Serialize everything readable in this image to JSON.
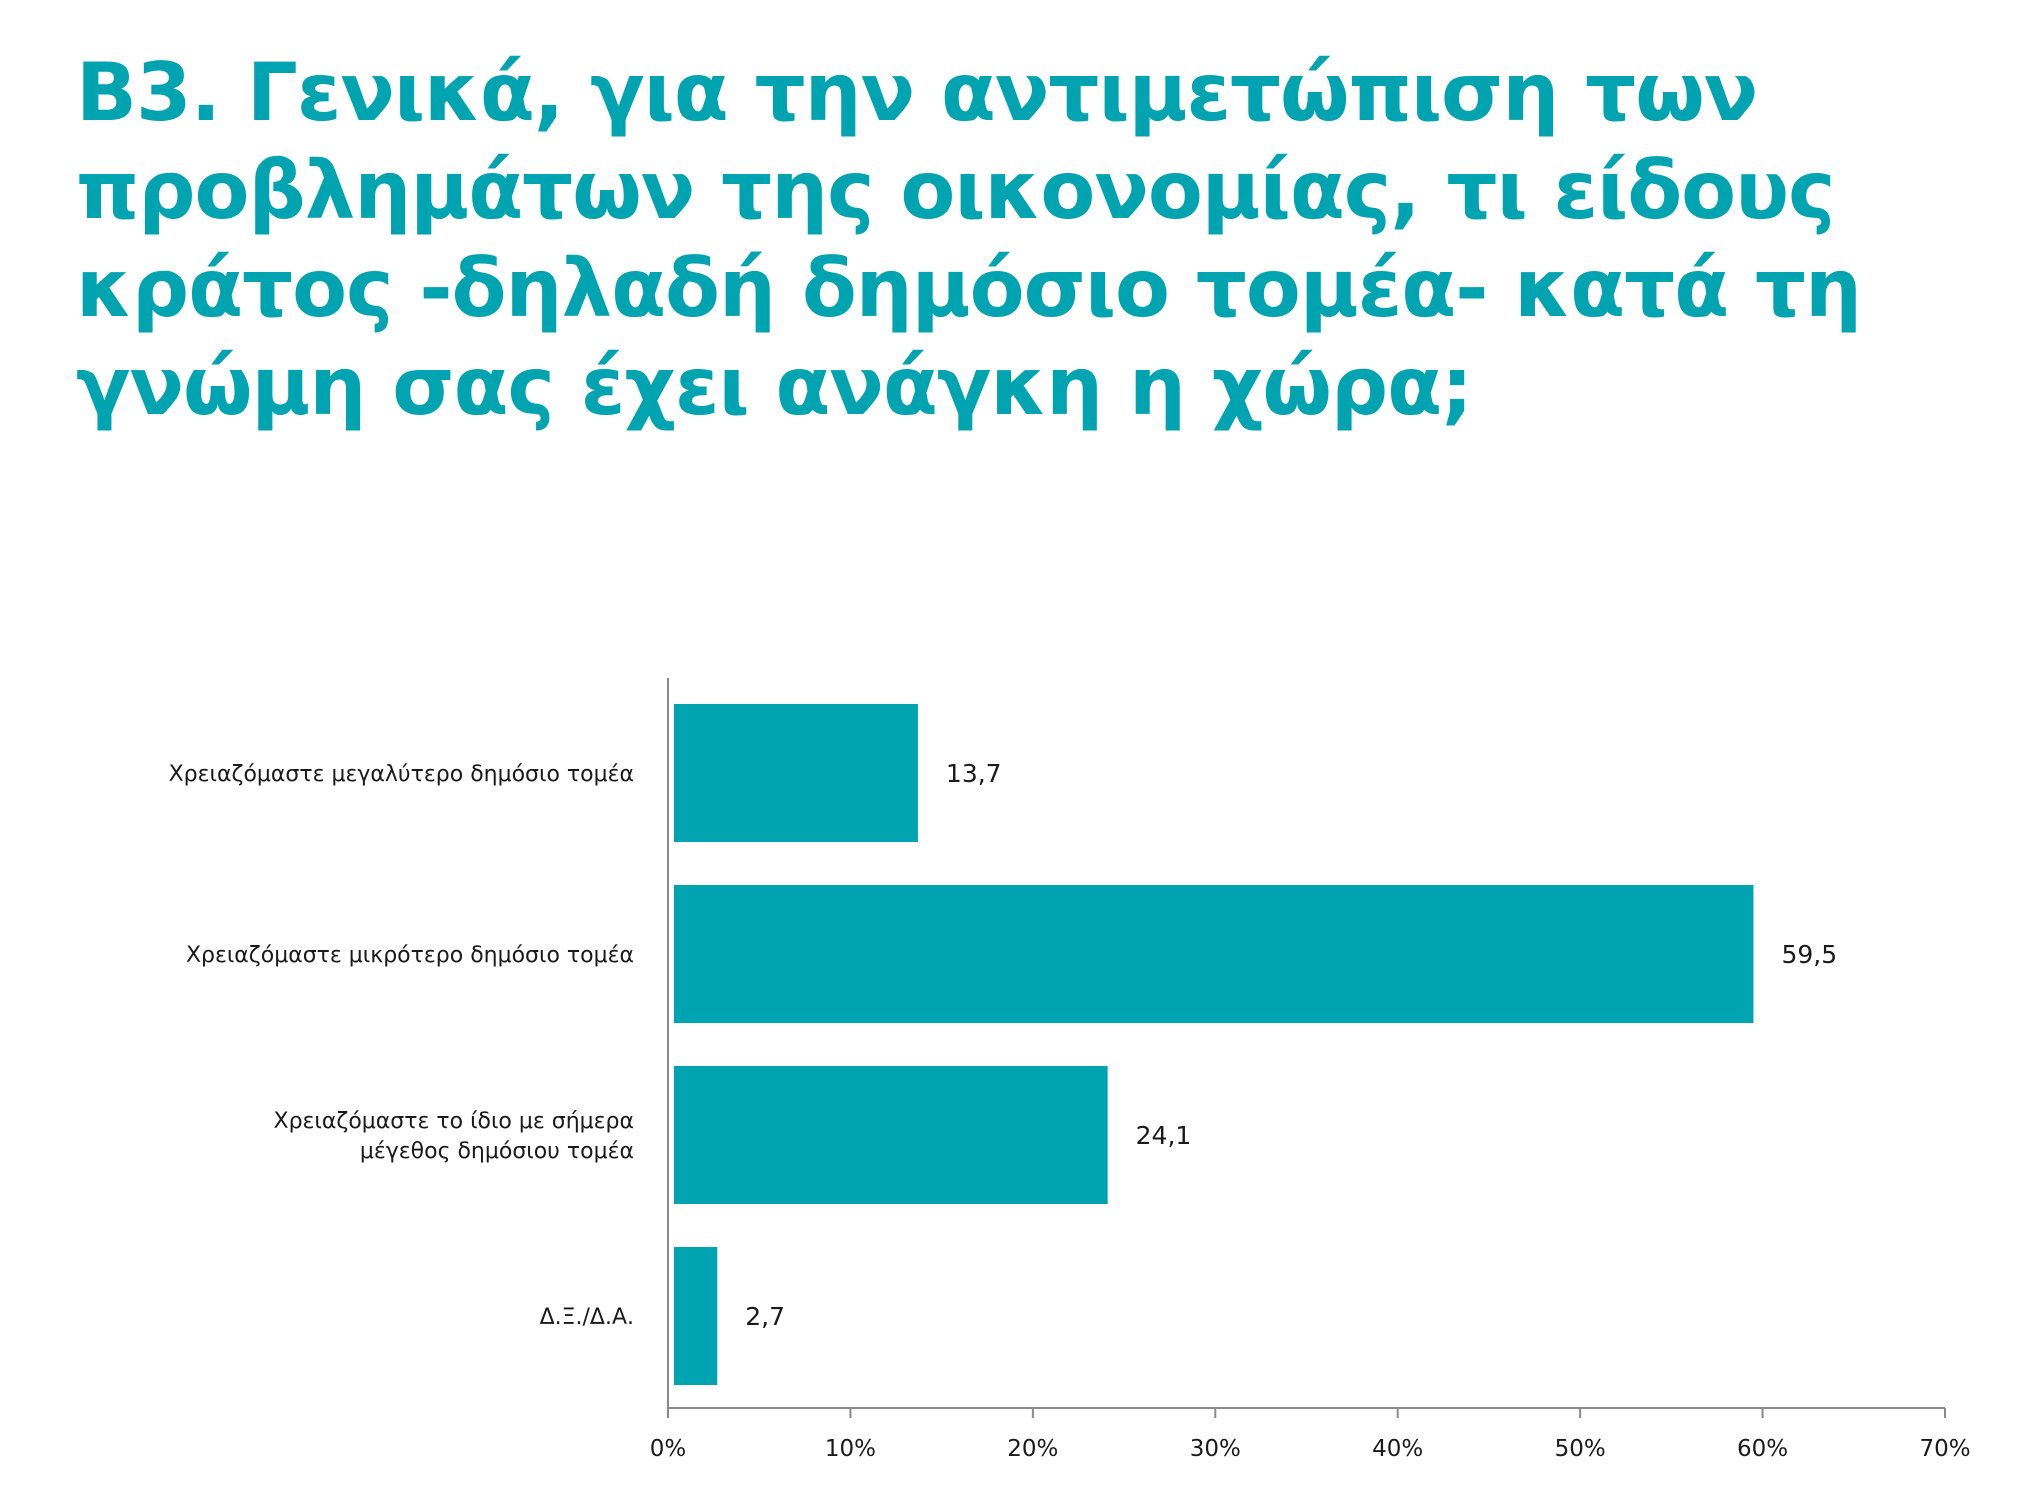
{
  "title_lines": [
    "Β3. Γενικά, για την αντιμετώπιση των",
    "προβλημάτων της οικονομίας, τι είδους",
    "κράτος -δηλαδή δημόσιο τομέα- κατά τη",
    "γνώμη σας έχει ανάγκη η χώρα;"
  ],
  "colors": {
    "accent": "#00A3B0",
    "bar": "#00A3B0",
    "axis": "#8a8a8a",
    "text": "#1a1a1a"
  },
  "chart_data": {
    "type": "bar",
    "orientation": "horizontal",
    "title": "Β3. Γενικά, για την αντιμετώπιση των προβλημάτων της οικονομίας, τι είδους κράτος -δηλαδή δημόσιο τομέα- κατά τη γνώμη σας έχει ανάγκη η χώρα;",
    "categories": [
      [
        "Χρειαζόμαστε μεγαλύτερο δημόσιο τομέα"
      ],
      [
        "Χρειαζόμαστε μικρότερο δημόσιο τομέα"
      ],
      [
        "Χρειαζόμαστε το ίδιο με σήμερα",
        "μέγεθος δημόσιου τομέα"
      ],
      [
        "Δ.Ξ./Δ.Α."
      ]
    ],
    "values": [
      13.7,
      59.5,
      24.1,
      2.7
    ],
    "value_labels": [
      "13,7",
      "59,5",
      "24,1",
      "2,7"
    ],
    "xlim": [
      0,
      70
    ],
    "xticks": [
      0,
      10,
      20,
      30,
      40,
      50,
      60,
      70
    ],
    "xtick_labels": [
      "0%",
      "10%",
      "20%",
      "30%",
      "40%",
      "50%",
      "60%",
      "70%"
    ],
    "grid": false,
    "legend": "none"
  }
}
